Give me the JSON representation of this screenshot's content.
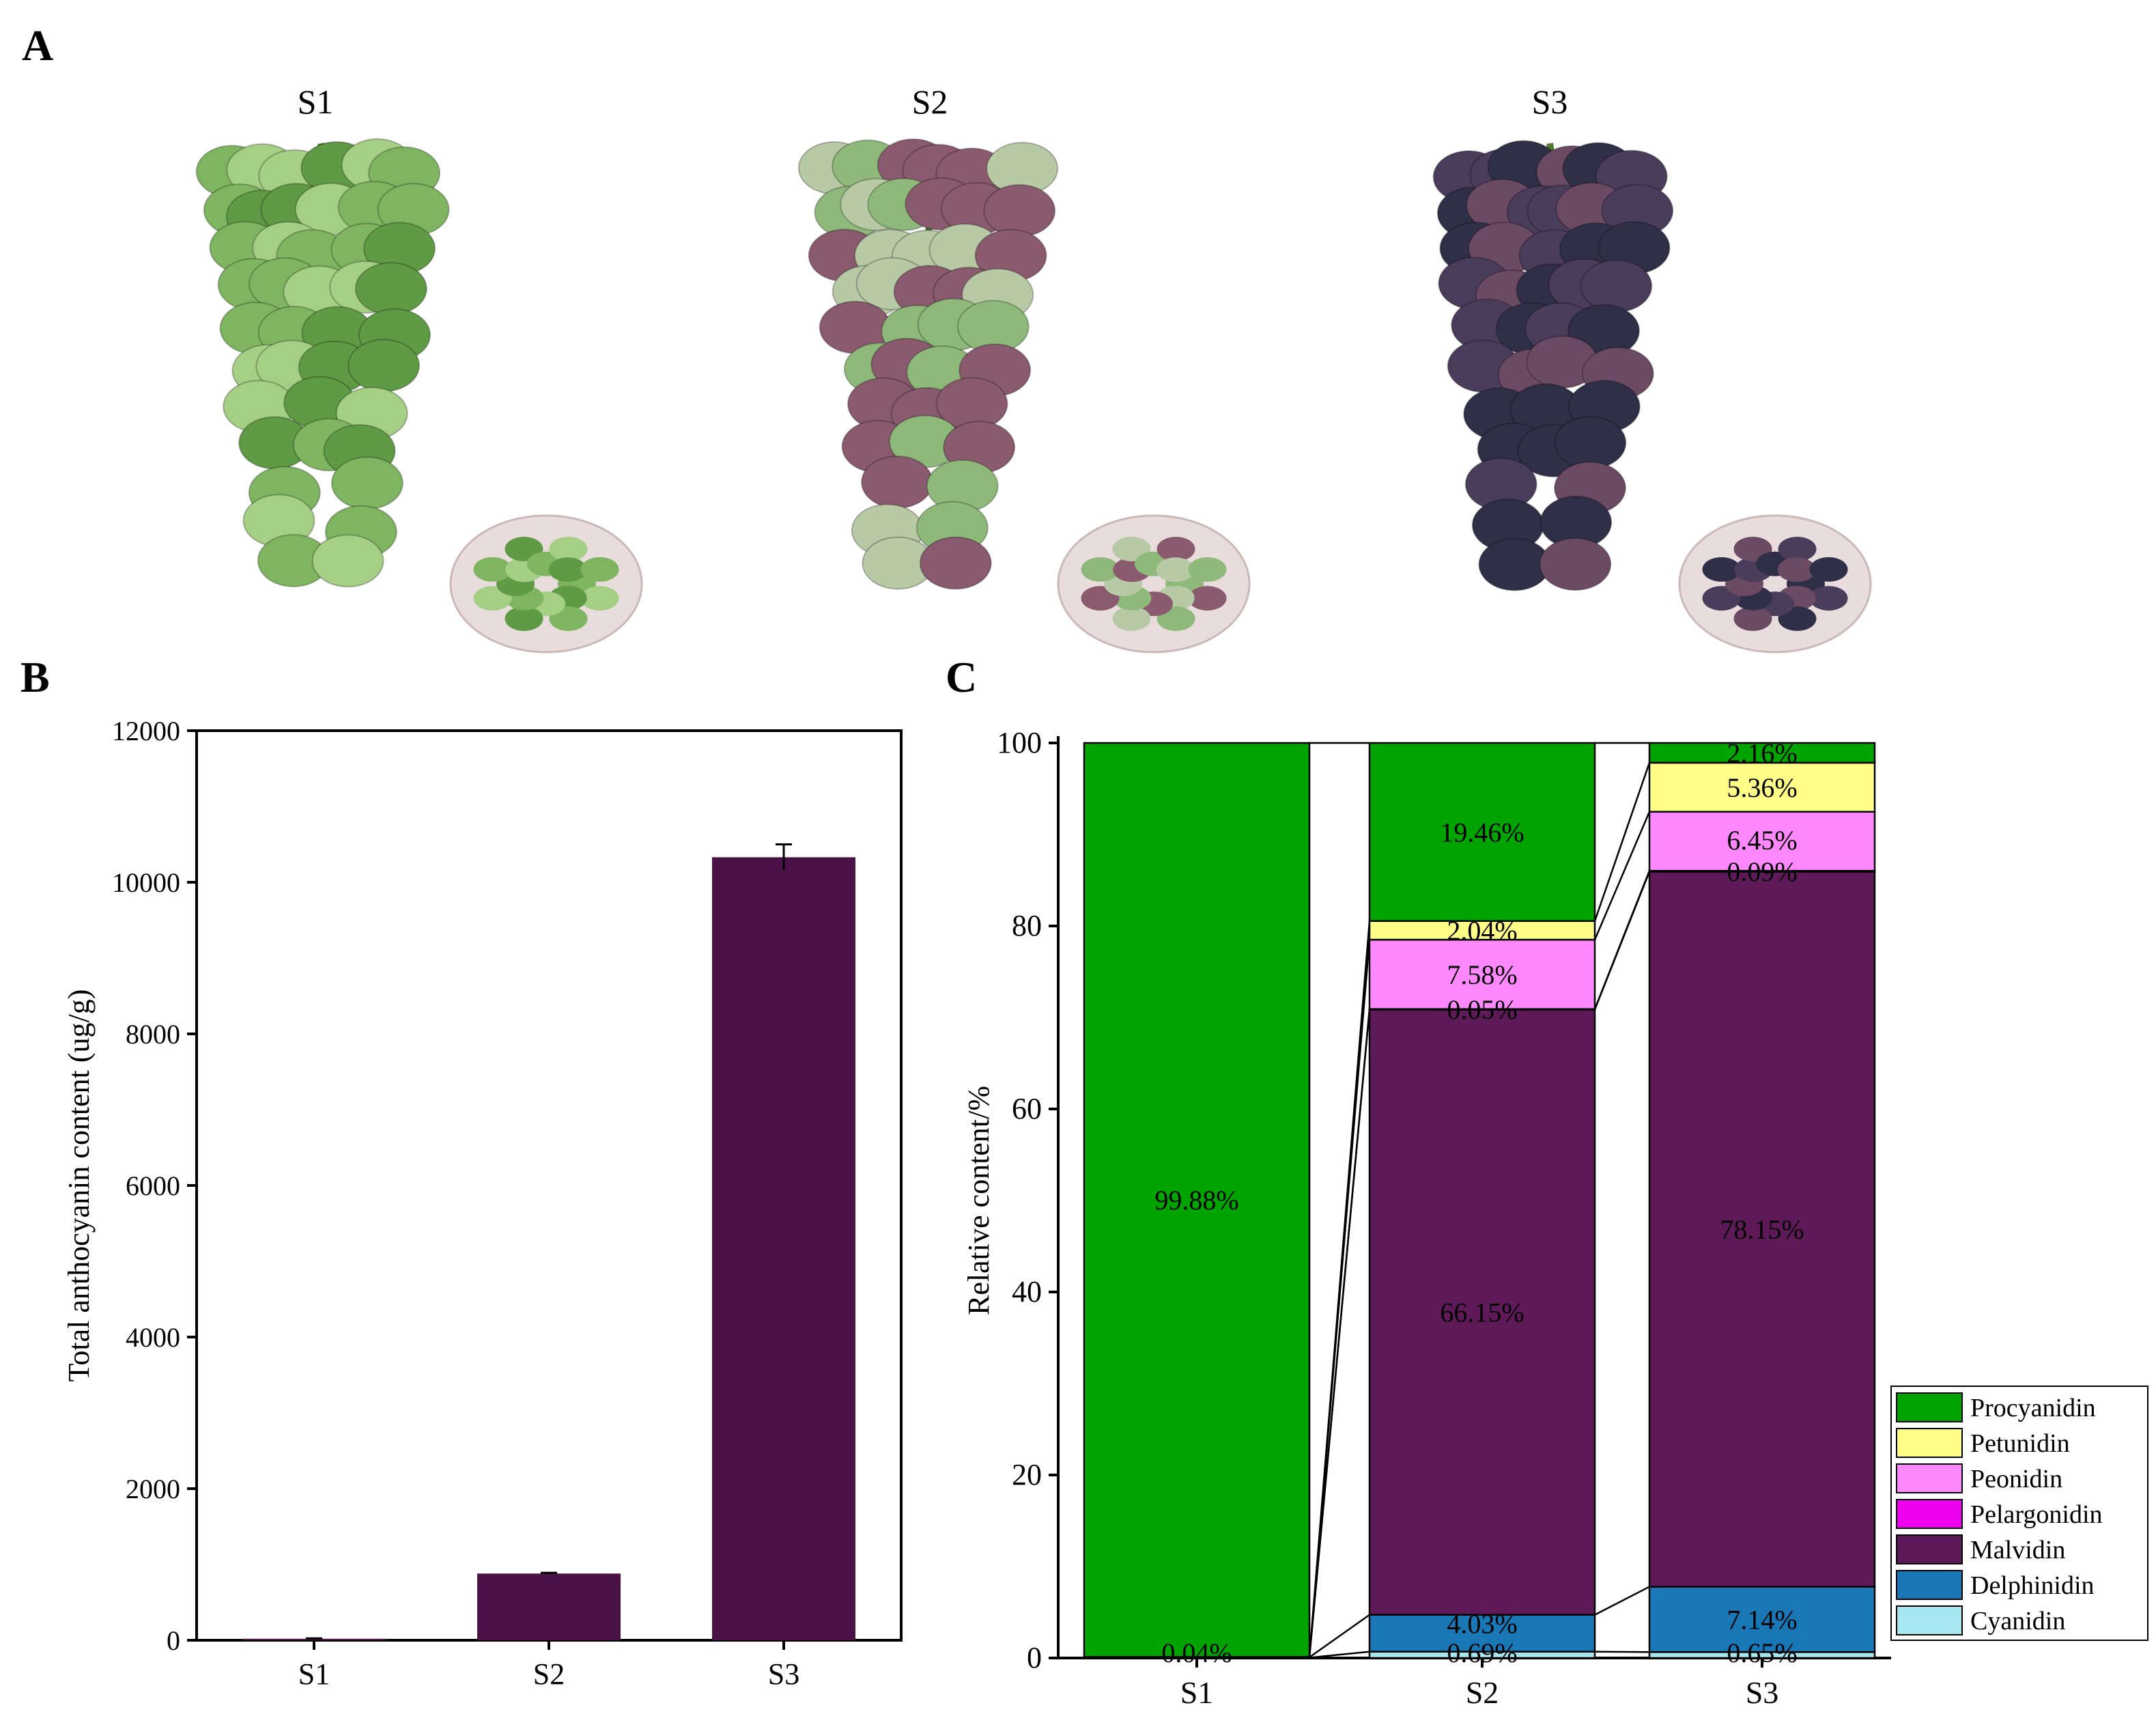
{
  "panels": {
    "a": {
      "letter": "A",
      "samples": [
        "S1",
        "S2",
        "S3"
      ],
      "cluster_colors": [
        [
          "#7fb560",
          "#a4cf85",
          "#5f9a45"
        ],
        [
          "#8fb97a",
          "#8a5a6e",
          "#b7c9a5"
        ],
        [
          "#2f2f47",
          "#4a3d5c",
          "#6b4a63"
        ]
      ]
    },
    "b": {
      "letter": "B"
    },
    "c": {
      "letter": "C"
    }
  },
  "chart_data": [
    {
      "type": "bar",
      "categories": [
        "S1",
        "S2",
        "S3"
      ],
      "values": [
        20,
        880,
        10330
      ],
      "errors": [
        5,
        10,
        170
      ],
      "ylabel": "Total anthocyanin content (ug/g)",
      "ylim": [
        0,
        12000
      ],
      "yticks": [
        0,
        2000,
        4000,
        6000,
        8000,
        10000,
        12000
      ],
      "bar_color": "#4a1246",
      "grid": false
    },
    {
      "type": "bar",
      "stacked": true,
      "categories": [
        "S1",
        "S2",
        "S3"
      ],
      "ylabel": "Relative content/%",
      "ylim": [
        0,
        100
      ],
      "yticks": [
        0,
        20,
        40,
        60,
        80,
        100
      ],
      "legend_position": "bottom-right",
      "series": [
        {
          "name": "Cyanidin",
          "color": "#a6e6ee",
          "values": [
            0.04,
            0.69,
            0.65
          ],
          "labels": [
            "",
            "0.69%",
            "0.65%"
          ]
        },
        {
          "name": "Delphinidin",
          "color": "#1a77b6",
          "values": [
            0.04,
            4.03,
            7.14
          ],
          "labels": [
            "",
            "4.03%",
            "7.14%"
          ]
        },
        {
          "name": "Malvidin",
          "color": "#5e1a58",
          "values": [
            0.04,
            66.15,
            78.15
          ],
          "labels": [
            "0.04%",
            "66.15%",
            "78.15%"
          ]
        },
        {
          "name": "Pelargonidin",
          "color": "#ee00ee",
          "values": [
            0,
            0.05,
            0.09
          ],
          "labels": [
            "",
            "0.05%",
            "0.09%"
          ]
        },
        {
          "name": "Peonidin",
          "color": "#ff88ff",
          "values": [
            0,
            7.58,
            6.45
          ],
          "labels": [
            "",
            "7.58%",
            "6.45%"
          ]
        },
        {
          "name": "Petunidin",
          "color": "#ffff88",
          "values": [
            0,
            2.04,
            5.36
          ],
          "labels": [
            "",
            "2.04%",
            "5.36%"
          ]
        },
        {
          "name": "Procyanidin",
          "color": "#00a300",
          "values": [
            99.88,
            19.46,
            2.16
          ],
          "labels": [
            "99.88%",
            "19.46%",
            "2.16%"
          ]
        }
      ]
    }
  ]
}
